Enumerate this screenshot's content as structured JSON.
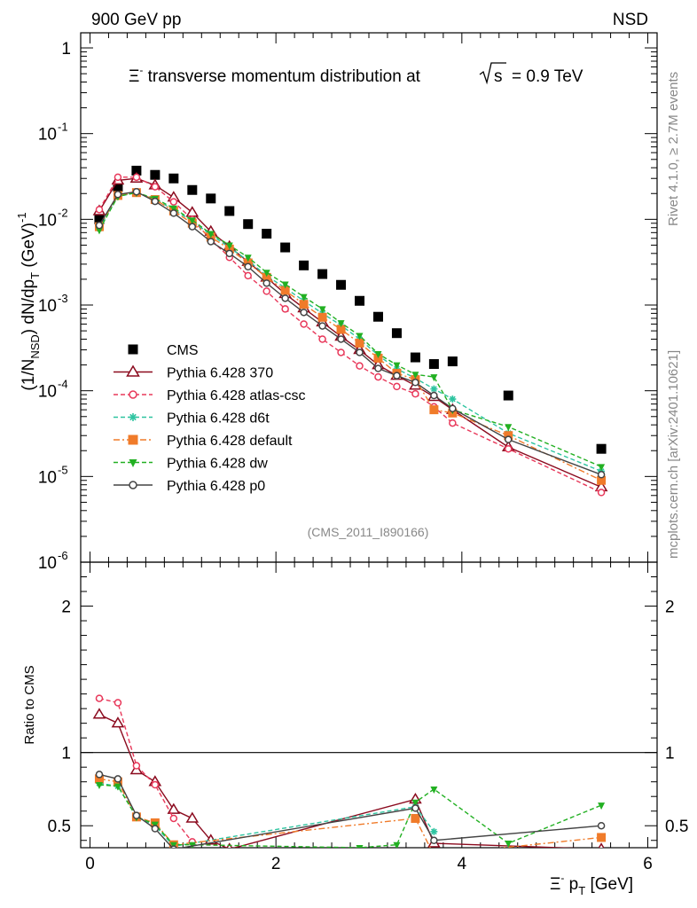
{
  "header": {
    "left": "900 GeV pp",
    "right": "NSD",
    "title_pre": "transverse momentum distribution at",
    "title_post": "= 0.9 TeV",
    "title_sym": "Ξ",
    "sqrt_s": "s"
  },
  "side": {
    "rivet": "Rivet 4.1.0, ≥ 2.7M events",
    "mcplots": "mcplots.cern.ch [arXiv:2401.10621]"
  },
  "analysis_tag": "(CMS_2011_I890166)",
  "axes": {
    "ylabel_main": "(1/N_NSD) dN/dp_T (GeV)^-1",
    "ylabel_ratio": "Ratio to CMS",
    "xlabel": "Ξ⁻ p_T [GeV]",
    "x_range": [
      -0.1,
      6.1
    ],
    "y_main_range": [
      1e-06,
      1.5
    ],
    "y_ratio_range": [
      0.35,
      2.3
    ],
    "x_ticks": [
      "0",
      "2",
      "4",
      "6"
    ],
    "y_main_ticks": [
      "1",
      "10^-1",
      "10^-2",
      "10^-3",
      "10^-4",
      "10^-5",
      "10^-6"
    ],
    "y_ratio_ticks": [
      "0.5",
      "1",
      "2"
    ]
  },
  "chart_data": {
    "type": "scatter",
    "title": "Ξ⁻ transverse momentum distribution at √s = 0.9 TeV",
    "xlabel": "Ξ⁻ p_T [GeV]",
    "ylabel": "(1/N_NSD) dN/dp_T (GeV)^-1",
    "yscale": "log",
    "xlim": [
      -0.1,
      6.1
    ],
    "ylim": [
      1e-06,
      1.5
    ],
    "ratio_ylim": [
      0.35,
      2.3
    ],
    "legend_position": "left",
    "series": [
      {
        "name": "CMS",
        "color": "#000000",
        "marker": "square",
        "dash": "none",
        "x": [
          0.1,
          0.3,
          0.5,
          0.7,
          0.9,
          1.1,
          1.3,
          1.5,
          1.7,
          1.9,
          2.1,
          2.3,
          2.5,
          2.7,
          2.9,
          3.1,
          3.3,
          3.5,
          3.7,
          3.9,
          4.5,
          5.5
        ],
        "y": [
          0.01,
          0.024,
          0.037,
          0.033,
          0.03,
          0.022,
          0.0175,
          0.0125,
          0.0088,
          0.0068,
          0.0047,
          0.0029,
          0.0023,
          0.00172,
          0.00112,
          0.00073,
          0.00047,
          0.000245,
          0.000205,
          0.00022,
          8.8e-05,
          2.1e-05
        ]
      },
      {
        "name": "Pythia 6.428 370",
        "color": "#8b0a1e",
        "marker": "triangle-open",
        "dash": "none",
        "x": [
          0.1,
          0.3,
          0.5,
          0.7,
          0.9,
          1.1,
          1.3,
          1.5,
          1.7,
          1.9,
          2.1,
          2.3,
          2.5,
          2.7,
          2.9,
          3.1,
          3.3,
          3.5,
          3.7,
          3.9,
          4.5,
          5.5
        ],
        "y": [
          0.0125,
          0.0285,
          0.03,
          0.025,
          0.018,
          0.012,
          0.0072,
          0.0048,
          0.0032,
          0.0021,
          0.00135,
          0.00092,
          0.00063,
          0.00043,
          0.0003,
          0.0002,
          0.00015,
          0.000115,
          8.5e-05,
          6e-05,
          2.2e-05,
          7.5e-06
        ]
      },
      {
        "name": "Pythia 6.428 atlas-csc",
        "color": "#e8385a",
        "marker": "circle-open",
        "dash": "dashed",
        "x": [
          0.1,
          0.3,
          0.5,
          0.7,
          0.9,
          1.1,
          1.3,
          1.5,
          1.7,
          1.9,
          2.1,
          2.3,
          2.5,
          2.7,
          2.9,
          3.1,
          3.3,
          3.5,
          3.7,
          3.9,
          4.5,
          5.5
        ],
        "y": [
          0.013,
          0.031,
          0.031,
          0.024,
          0.016,
          0.01,
          0.0058,
          0.0036,
          0.0022,
          0.00145,
          0.0009,
          0.0006,
          0.0004,
          0.00028,
          0.000195,
          0.000145,
          0.000112,
          9.2e-05,
          6.5e-05,
          4.2e-05,
          2.1e-05,
          6.5e-06
        ]
      },
      {
        "name": "Pythia 6.428 d6t",
        "color": "#2ec4a0",
        "marker": "star",
        "dash": "dashed",
        "x": [
          0.1,
          0.3,
          0.5,
          0.7,
          0.9,
          1.1,
          1.3,
          1.5,
          1.7,
          1.9,
          2.1,
          2.3,
          2.5,
          2.7,
          2.9,
          3.1,
          3.3,
          3.5,
          3.7,
          3.9,
          4.5,
          5.5
        ],
        "y": [
          0.0078,
          0.0185,
          0.0205,
          0.017,
          0.013,
          0.0095,
          0.0066,
          0.0047,
          0.0033,
          0.0022,
          0.00158,
          0.00112,
          0.0008,
          0.00058,
          0.0004,
          0.00026,
          0.00018,
          0.00014,
          0.000105,
          8e-05,
          3.2e-05,
          1.15e-05
        ]
      },
      {
        "name": "Pythia 6.428 default",
        "color": "#f07b2a",
        "marker": "square",
        "dash": "dashdot",
        "x": [
          0.1,
          0.3,
          0.5,
          0.7,
          0.9,
          1.1,
          1.3,
          1.5,
          1.7,
          1.9,
          2.1,
          2.3,
          2.5,
          2.7,
          2.9,
          3.1,
          3.3,
          3.5,
          3.7,
          3.9,
          4.5,
          5.5
        ],
        "y": [
          0.0082,
          0.019,
          0.0205,
          0.017,
          0.0125,
          0.009,
          0.0062,
          0.0045,
          0.0031,
          0.0021,
          0.00148,
          0.00102,
          0.00072,
          0.00052,
          0.00036,
          0.00024,
          0.00016,
          0.000135,
          6e-05,
          5.5e-05,
          3e-05,
          9e-06
        ]
      },
      {
        "name": "Pythia 6.428 dw",
        "color": "#22b022",
        "marker": "triangle-down",
        "dash": "dashed",
        "x": [
          0.1,
          0.3,
          0.5,
          0.7,
          0.9,
          1.1,
          1.3,
          1.5,
          1.7,
          1.9,
          2.1,
          2.3,
          2.5,
          2.7,
          2.9,
          3.1,
          3.3,
          3.5,
          3.7,
          3.9,
          4.5,
          5.5
        ],
        "y": [
          0.0075,
          0.0185,
          0.0205,
          0.0175,
          0.0135,
          0.0098,
          0.0068,
          0.005,
          0.0036,
          0.0024,
          0.00175,
          0.00125,
          0.0009,
          0.00062,
          0.00044,
          0.00027,
          0.0002,
          0.000155,
          0.000145,
          6e-05,
          3.8e-05,
          1.3e-05
        ]
      },
      {
        "name": "Pythia 6.428 p0",
        "color": "#444444",
        "marker": "circle-open",
        "dash": "none",
        "x": [
          0.1,
          0.3,
          0.5,
          0.7,
          0.9,
          1.1,
          1.3,
          1.5,
          1.7,
          1.9,
          2.1,
          2.3,
          2.5,
          2.7,
          2.9,
          3.1,
          3.3,
          3.5,
          3.7,
          3.9,
          4.5,
          5.5
        ],
        "y": [
          0.0085,
          0.0195,
          0.021,
          0.0162,
          0.0118,
          0.0082,
          0.0055,
          0.004,
          0.0028,
          0.0018,
          0.0012,
          0.00082,
          0.00057,
          0.0004,
          0.00028,
          0.000182,
          0.00015,
          0.000125,
          8.8e-05,
          6.2e-05,
          2.7e-05,
          1.05e-05
        ]
      }
    ],
    "ratio_series": [
      {
        "name": "Pythia 6.428 370",
        "x": [
          0.1,
          0.3,
          0.5,
          0.7,
          0.9,
          1.1,
          1.3,
          1.5,
          3.5,
          3.7,
          5.5
        ],
        "y": [
          1.26,
          1.2,
          0.88,
          0.8,
          0.61,
          0.55,
          0.4,
          0.34,
          0.68,
          0.38,
          0.34
        ]
      },
      {
        "name": "Pythia 6.428 atlas-csc",
        "x": [
          0.1,
          0.3,
          0.5,
          0.7,
          0.9,
          1.1
        ],
        "y": [
          1.37,
          1.34,
          0.91,
          0.78,
          0.55,
          0.39
        ]
      },
      {
        "name": "Pythia 6.428 d6t",
        "x": [
          0.1,
          0.3,
          0.5,
          0.7,
          0.9,
          3.5,
          3.7
        ],
        "y": [
          0.79,
          0.77,
          0.56,
          0.5,
          0.36,
          0.63,
          0.46
        ]
      },
      {
        "name": "Pythia 6.428 default",
        "x": [
          0.1,
          0.3,
          0.5,
          0.7,
          0.9,
          3.5,
          3.7,
          5.5
        ],
        "y": [
          0.82,
          0.8,
          0.56,
          0.52,
          0.37,
          0.55,
          0.3,
          0.42
        ]
      },
      {
        "name": "Pythia 6.428 dw",
        "x": [
          0.1,
          0.3,
          0.5,
          0.7,
          0.9,
          1.1,
          2.9,
          3.3,
          3.5,
          3.7,
          4.5,
          5.5
        ],
        "y": [
          0.78,
          0.77,
          0.56,
          0.51,
          0.37,
          0.37,
          0.35,
          0.37,
          0.66,
          0.75,
          0.38,
          0.64
        ]
      },
      {
        "name": "Pythia 6.428 p0",
        "x": [
          0.1,
          0.3,
          0.5,
          0.7,
          0.9,
          3.5,
          3.7,
          5.5
        ],
        "y": [
          0.85,
          0.82,
          0.57,
          0.48,
          0.34,
          0.62,
          0.4,
          0.5
        ]
      }
    ]
  }
}
